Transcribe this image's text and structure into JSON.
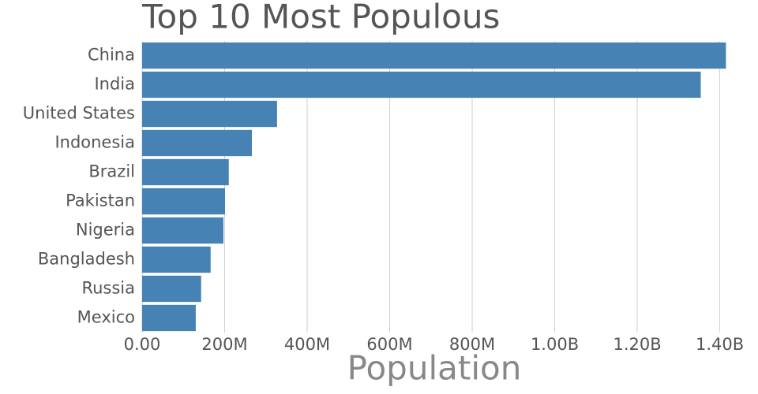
{
  "chart_data": {
    "type": "barh",
    "title": "Top 10 Most Populous",
    "x_label": "Population",
    "categories": [
      "China",
      "India",
      "United States",
      "Indonesia",
      "Brazil",
      "Pakistan",
      "Nigeria",
      "Bangladesh",
      "Russia",
      "Mexico"
    ],
    "values": [
      1415000000,
      1354000000,
      327000000,
      266000000,
      210000000,
      201000000,
      197000000,
      166000000,
      143000000,
      130000000
    ],
    "color": "#4682b4",
    "xlim": [
      0,
      1420000000
    ],
    "xticks": [
      {
        "value": 0,
        "label": "0.00"
      },
      {
        "value": 200000000,
        "label": "200M"
      },
      {
        "value": 400000000,
        "label": "400M"
      },
      {
        "value": 600000000,
        "label": "600M"
      },
      {
        "value": 800000000,
        "label": "800M"
      },
      {
        "value": 1000000000,
        "label": "1.00B"
      },
      {
        "value": 1200000000,
        "label": "1.20B"
      },
      {
        "value": 1400000000,
        "label": "1.40B"
      }
    ],
    "grid": true
  }
}
